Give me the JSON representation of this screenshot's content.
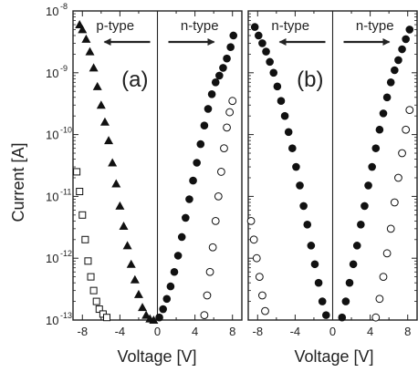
{
  "chart_data": {
    "type": "scatter",
    "xlabel": "Voltage [V]",
    "ylabel": "Current [A]",
    "xlim": [
      -9,
      9
    ],
    "ylim": [
      1e-13,
      1e-08
    ],
    "yscale": "log",
    "x_ticks": [
      -8,
      -4,
      0,
      4,
      8
    ],
    "x_tick_labels": [
      "-8",
      "-4",
      "0",
      "4",
      "8"
    ],
    "y_ticks": [
      1e-13,
      1e-12,
      1e-11,
      1e-10,
      1e-09,
      1e-08
    ],
    "y_tick_base": [
      "10",
      "10",
      "10",
      "10",
      "10",
      "10"
    ],
    "y_tick_exp": [
      "-13",
      "-12",
      "-11",
      "-10",
      "-9",
      "-8"
    ],
    "grid": false,
    "colors": {
      "frame": "#222222",
      "marker_fill": "#111111",
      "open_marker_fill": "#ffffff"
    },
    "panels": [
      {
        "tag": "(a)",
        "regions": [
          {
            "label": "p-type",
            "arrow": "left"
          },
          {
            "label": "n-type",
            "arrow": "right"
          }
        ],
        "series": [
          {
            "marker": "filled-triangle",
            "points": [
              [
                -8.3,
                6e-09
              ],
              [
                -8.0,
                5e-09
              ],
              [
                -7.6,
                3.5e-09
              ],
              [
                -7.2,
                2.2e-09
              ],
              [
                -6.8,
                1.2e-09
              ],
              [
                -6.4,
                6e-10
              ],
              [
                -6.0,
                3e-10
              ],
              [
                -5.6,
                1.6e-10
              ],
              [
                -5.2,
                8e-11
              ],
              [
                -4.8,
                3.5e-11
              ],
              [
                -4.4,
                1.6e-11
              ],
              [
                -4.0,
                7e-12
              ],
              [
                -3.6,
                3.3e-12
              ],
              [
                -3.2,
                1.6e-12
              ],
              [
                -2.8,
                8e-13
              ],
              [
                -2.4,
                4.5e-13
              ],
              [
                -2.0,
                2.6e-13
              ],
              [
                -1.6,
                1.6e-13
              ],
              [
                -1.2,
                1.2e-13
              ],
              [
                -0.8,
                1.05e-13
              ],
              [
                -0.4,
                1e-13
              ]
            ]
          },
          {
            "marker": "filled-circle",
            "points": [
              [
                0.2,
                1.1e-13
              ],
              [
                0.6,
                1.5e-13
              ],
              [
                1.0,
                2.2e-13
              ],
              [
                1.4,
                3.5e-13
              ],
              [
                1.8,
                6e-13
              ],
              [
                2.2,
                1.1e-12
              ],
              [
                2.6,
                2.2e-12
              ],
              [
                3.0,
                4.5e-12
              ],
              [
                3.4,
                9e-12
              ],
              [
                3.8,
                1.8e-11
              ],
              [
                4.2,
                3.5e-11
              ],
              [
                4.6,
                7e-11
              ],
              [
                5.0,
                1.4e-10
              ],
              [
                5.4,
                2.6e-10
              ],
              [
                5.8,
                4.5e-10
              ],
              [
                6.2,
                7e-10
              ],
              [
                6.6,
                9e-10
              ],
              [
                7.0,
                1.2e-09
              ],
              [
                7.4,
                1.7e-09
              ],
              [
                7.8,
                2.6e-09
              ],
              [
                8.1,
                4e-09
              ]
            ]
          },
          {
            "marker": "open-circle",
            "points": [
              [
                5.0,
                1.2e-13
              ],
              [
                5.3,
                2.5e-13
              ],
              [
                5.6,
                6e-13
              ],
              [
                5.9,
                1.5e-12
              ],
              [
                6.2,
                4e-12
              ],
              [
                6.5,
                1e-11
              ],
              [
                6.8,
                2.5e-11
              ],
              [
                7.1,
                6e-11
              ],
              [
                7.4,
                1.3e-10
              ],
              [
                7.7,
                2.3e-10
              ],
              [
                8.0,
                3.5e-10
              ]
            ]
          },
          {
            "marker": "open-square",
            "points": [
              [
                -8.6,
                2.5e-11
              ],
              [
                -8.3,
                1.2e-11
              ],
              [
                -8.0,
                5e-12
              ],
              [
                -7.7,
                2e-12
              ],
              [
                -7.4,
                9e-13
              ],
              [
                -7.1,
                5e-13
              ],
              [
                -6.8,
                3e-13
              ],
              [
                -6.5,
                2e-13
              ],
              [
                -6.2,
                1.5e-13
              ],
              [
                -5.8,
                1.25e-13
              ],
              [
                -5.4,
                1.1e-13
              ]
            ]
          }
        ]
      },
      {
        "tag": "(b)",
        "regions": [
          {
            "label": "n-type",
            "arrow": "left"
          },
          {
            "label": "n-type",
            "arrow": "right"
          }
        ],
        "series": [
          {
            "marker": "filled-circle",
            "points": [
              [
                -8.3,
                5.5e-09
              ],
              [
                -7.9,
                4e-09
              ],
              [
                -7.5,
                3e-09
              ],
              [
                -7.1,
                2.2e-09
              ],
              [
                -6.7,
                1.5e-09
              ],
              [
                -6.3,
                1e-09
              ],
              [
                -5.9,
                6e-10
              ],
              [
                -5.5,
                3.5e-10
              ],
              [
                -5.1,
                2e-10
              ],
              [
                -4.7,
                1.1e-10
              ],
              [
                -4.3,
                6e-11
              ],
              [
                -3.9,
                3e-11
              ],
              [
                -3.5,
                1.5e-11
              ],
              [
                -3.1,
                7e-12
              ],
              [
                -2.7,
                3.5e-12
              ],
              [
                -2.3,
                1.6e-12
              ],
              [
                -1.9,
                8e-13
              ],
              [
                -1.5,
                4e-13
              ],
              [
                -1.1,
                2e-13
              ],
              [
                -0.7,
                1.2e-13
              ],
              [
                1.0,
                1.1e-13
              ],
              [
                1.4,
                2e-13
              ],
              [
                1.8,
                4e-13
              ],
              [
                2.2,
                8e-13
              ],
              [
                2.6,
                1.6e-12
              ],
              [
                3.0,
                3.5e-12
              ],
              [
                3.4,
                7e-12
              ],
              [
                3.8,
                1.5e-11
              ],
              [
                4.2,
                3e-11
              ],
              [
                4.6,
                6e-11
              ],
              [
                5.0,
                1.2e-10
              ],
              [
                5.4,
                2.2e-10
              ],
              [
                5.8,
                4e-10
              ],
              [
                6.2,
                7e-10
              ],
              [
                6.6,
                1.1e-09
              ],
              [
                7.0,
                1.6e-09
              ],
              [
                7.4,
                2.4e-09
              ],
              [
                7.8,
                3.5e-09
              ],
              [
                8.2,
                5e-09
              ]
            ]
          },
          {
            "marker": "open-circle",
            "points": [
              [
                -8.7,
                4e-12
              ],
              [
                -8.4,
                2e-12
              ],
              [
                -8.1,
                1e-12
              ],
              [
                -7.8,
                5e-13
              ],
              [
                -7.5,
                2.5e-13
              ],
              [
                -7.2,
                1.4e-13
              ],
              [
                4.6,
                1.1e-13
              ],
              [
                5.0,
                2.2e-13
              ],
              [
                5.4,
                5e-13
              ],
              [
                5.8,
                1.2e-12
              ],
              [
                6.2,
                3e-12
              ],
              [
                6.6,
                8e-12
              ],
              [
                7.0,
                2e-11
              ],
              [
                7.4,
                5e-11
              ],
              [
                7.8,
                1.2e-10
              ],
              [
                8.2,
                2.5e-10
              ]
            ]
          }
        ]
      }
    ]
  }
}
